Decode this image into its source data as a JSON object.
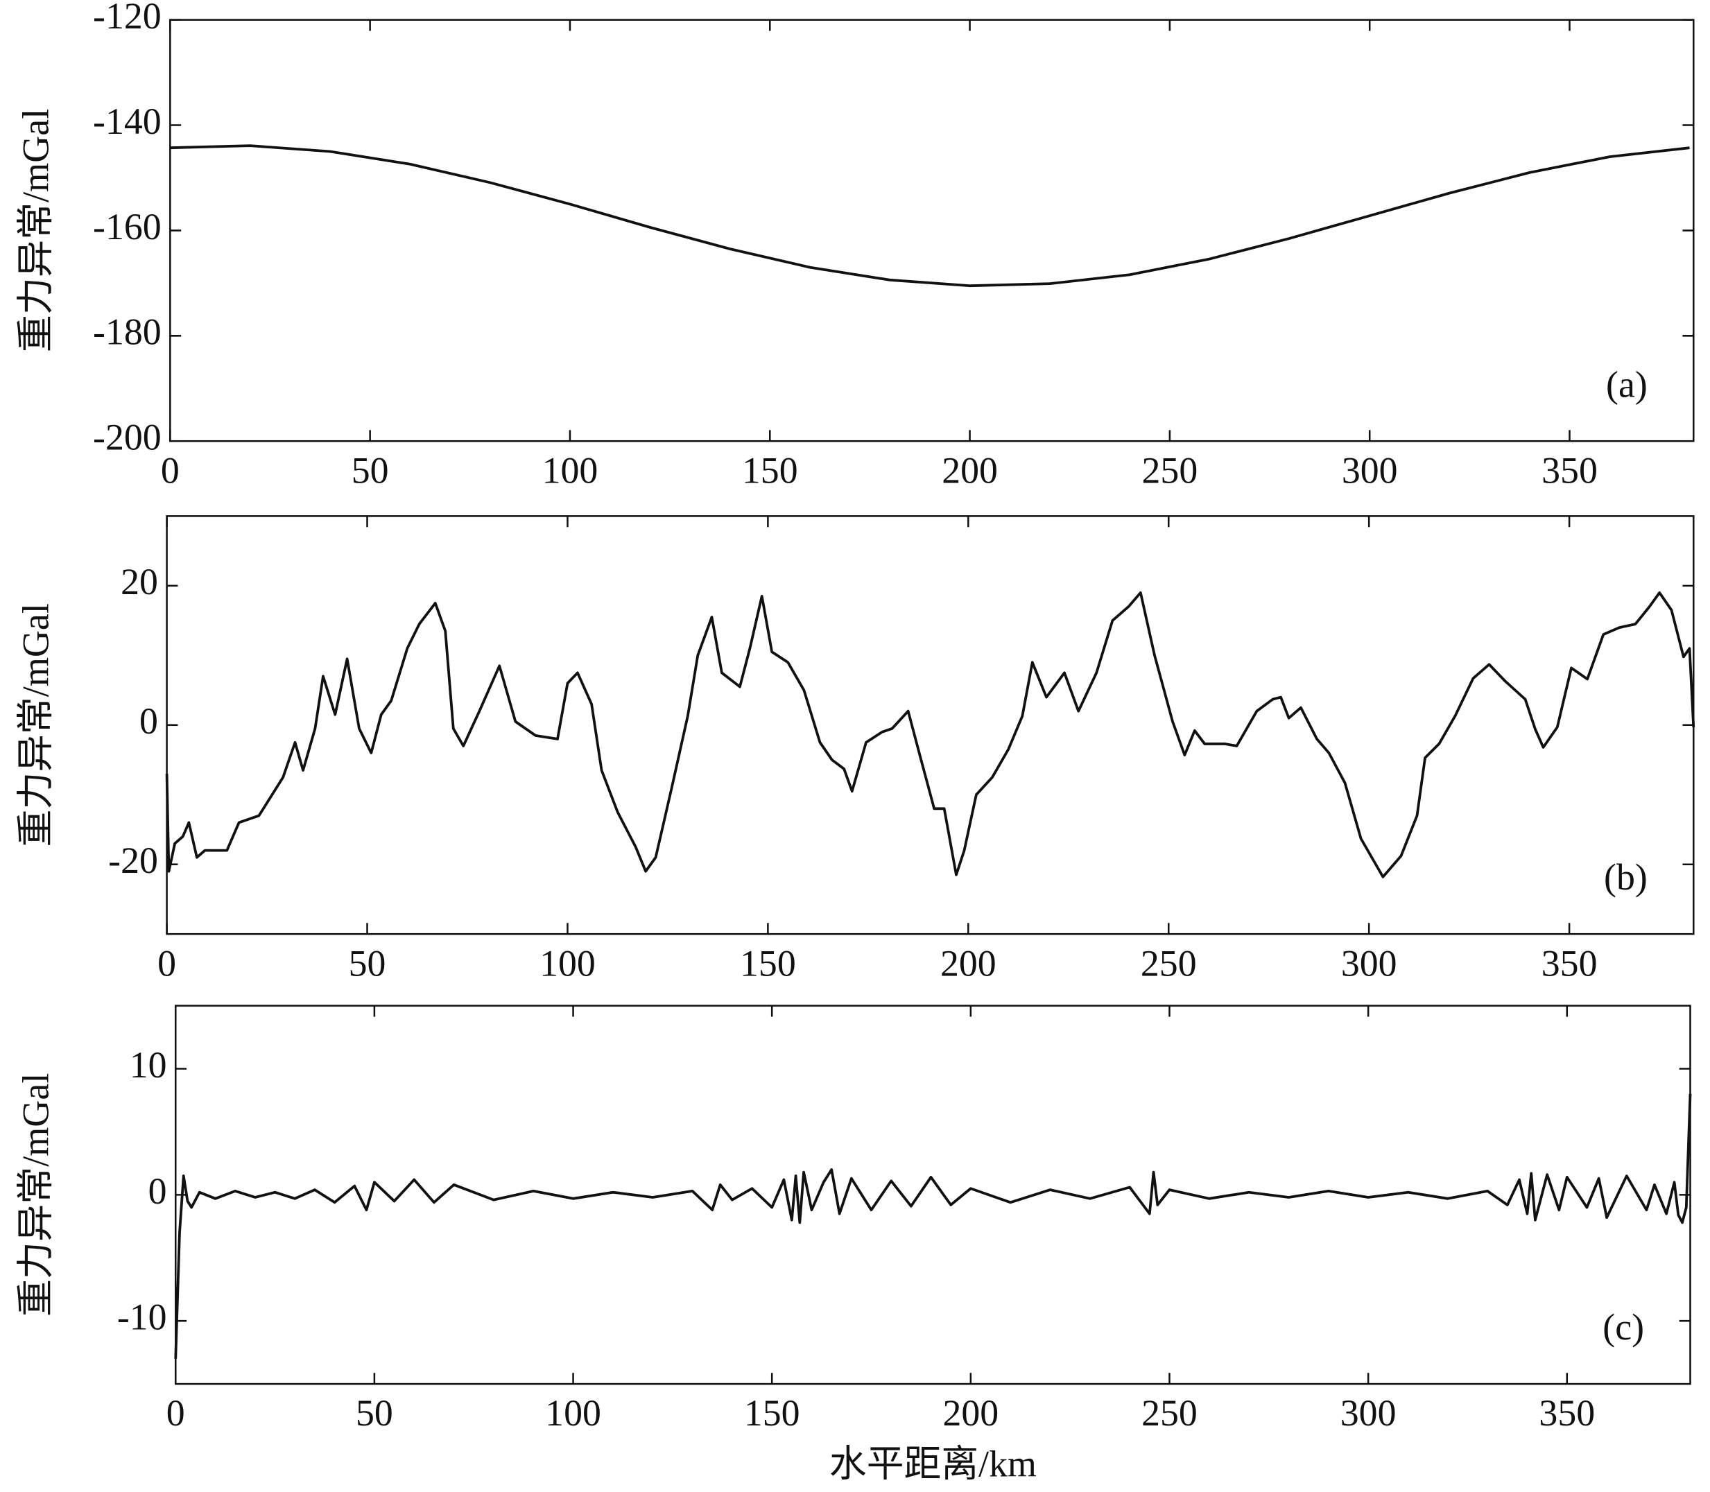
{
  "chart_data": [
    {
      "type": "line",
      "y_label": "重力异常/mGal",
      "panel_label": "(a)",
      "color": "#111111",
      "xlim": [
        0,
        381
      ],
      "ylim": [
        -200,
        -120
      ],
      "xticks": [
        0,
        50,
        100,
        150,
        200,
        250,
        300,
        350
      ],
      "yticks": [
        -200,
        -180,
        -160,
        -140,
        -120
      ],
      "x": [
        0,
        20,
        40,
        60,
        80,
        100,
        120,
        140,
        160,
        180,
        200,
        220,
        240,
        260,
        280,
        300,
        320,
        340,
        360,
        380
      ],
      "values": [
        -144.3,
        -143.9,
        -145.0,
        -147.4,
        -150.9,
        -155.0,
        -159.4,
        -163.5,
        -167.0,
        -169.4,
        -170.5,
        -170.1,
        -168.4,
        -165.4,
        -161.5,
        -157.2,
        -152.9,
        -149.0,
        -146.0,
        -144.3
      ]
    },
    {
      "type": "line",
      "y_label": "重力异常/mGal",
      "panel_label": "(b)",
      "color": "#111111",
      "xlim": [
        0,
        381
      ],
      "ylim": [
        -30,
        30
      ],
      "xticks": [
        0,
        50,
        100,
        150,
        200,
        250,
        300,
        350
      ],
      "yticks": [
        -20,
        0,
        20
      ],
      "x": [
        0,
        0.5,
        2,
        4,
        5.5,
        7.5,
        9.5,
        12,
        15,
        18,
        23,
        29,
        32,
        34,
        37,
        39,
        42,
        45,
        48,
        51,
        53.5,
        56,
        60,
        63,
        67,
        69.5,
        71.5,
        74,
        78,
        83,
        87,
        92,
        97.5,
        100,
        102.5,
        106,
        108.5,
        112.5,
        117,
        119.5,
        122,
        126,
        130,
        132.5,
        136,
        138.5,
        143,
        145.5,
        148.5,
        151,
        155,
        159,
        163,
        166,
        169,
        171,
        174.5,
        178.5,
        181,
        185,
        188,
        191.5,
        194,
        197,
        199,
        202,
        206,
        210,
        213.5,
        216,
        219.5,
        224,
        227.5,
        232,
        236,
        240,
        243,
        246.5,
        251,
        254,
        256.5,
        259,
        264,
        267,
        272,
        276,
        278,
        280,
        283,
        287,
        290,
        294,
        298,
        303.5,
        308,
        312,
        314,
        317.5,
        321.5,
        326,
        330,
        334,
        339,
        341.5,
        343.5,
        347,
        350.5,
        354.5,
        358.5,
        362.5,
        366.5,
        370,
        372.5,
        375.5,
        378.5,
        380,
        381
      ],
      "values": [
        -7,
        -21,
        -17,
        -16,
        -14,
        -19,
        -18,
        -18,
        -18,
        -14,
        -13,
        -7.5,
        -2.5,
        -6.5,
        -0.5,
        7,
        1.5,
        9.5,
        -0.5,
        -4,
        1.5,
        3.5,
        11,
        14.5,
        17.5,
        13.5,
        -0.5,
        -3,
        2,
        8.5,
        0.5,
        -1.5,
        -2,
        6,
        7.5,
        3,
        -6.5,
        -12.5,
        -17.5,
        -21,
        -19,
        -9,
        1.3,
        10,
        15.5,
        7.5,
        5.5,
        11,
        18.5,
        10.5,
        9,
        5,
        -2.5,
        -5,
        -6.3,
        -9.5,
        -2.5,
        -1,
        -0.5,
        2,
        -4.5,
        -12,
        -12,
        -21.5,
        -18,
        -10,
        -7.5,
        -3.5,
        1.3,
        9,
        4,
        7.5,
        2,
        7.5,
        15,
        17,
        19,
        10,
        0.5,
        -4.3,
        -0.8,
        -2.7,
        -2.7,
        -3,
        2,
        3.7,
        4,
        1,
        2.5,
        -2,
        -4,
        -8.3,
        -16.3,
        -21.8,
        -18.8,
        -13,
        -4.7,
        -2.7,
        1.3,
        6.7,
        8.7,
        6.3,
        3.7,
        -0.6,
        -3.2,
        -0.3,
        8.2,
        6.6,
        13,
        14,
        14.5,
        17,
        19,
        16.5,
        9.8,
        11,
        -0.3
      ]
    },
    {
      "type": "line",
      "y_label": "重力异常/mGal",
      "panel_label": "(c)",
      "x_label": "水平距离/km",
      "color": "#111111",
      "xlim": [
        0,
        381
      ],
      "ylim": [
        -15,
        15
      ],
      "xticks": [
        0,
        50,
        100,
        150,
        200,
        250,
        300,
        350
      ],
      "yticks": [
        -10,
        0,
        10
      ],
      "x": [
        0,
        1,
        2,
        3,
        4,
        6,
        10,
        15,
        20,
        25,
        30,
        35,
        40,
        45,
        48,
        50,
        55,
        60,
        65,
        70,
        80,
        90,
        100,
        110,
        120,
        130,
        135,
        137,
        140,
        145,
        150,
        153,
        155,
        156,
        157,
        158,
        160,
        163,
        165,
        167,
        170,
        175,
        180,
        185,
        190,
        195,
        200,
        210,
        220,
        230,
        240,
        245,
        246,
        247,
        250,
        260,
        270,
        280,
        290,
        300,
        310,
        320,
        330,
        335,
        338,
        340,
        341,
        342,
        345,
        348,
        350,
        355,
        358,
        360,
        365,
        370,
        372,
        375,
        377,
        378,
        379,
        380,
        381
      ],
      "values": [
        -13,
        -3,
        1.5,
        -0.5,
        -1,
        0.2,
        -0.3,
        0.3,
        -0.2,
        0.2,
        -0.3,
        0.4,
        -0.6,
        0.7,
        -1.2,
        1,
        -0.5,
        1.2,
        -0.6,
        0.8,
        -0.4,
        0.3,
        -0.3,
        0.2,
        -0.2,
        0.3,
        -1.2,
        0.8,
        -0.4,
        0.5,
        -1,
        1.2,
        -2,
        1.5,
        -2.2,
        1.8,
        -1.2,
        1,
        2,
        -1.5,
        1.3,
        -1.2,
        1.1,
        -0.9,
        1.4,
        -0.8,
        0.5,
        -0.6,
        0.4,
        -0.3,
        0.6,
        -1.5,
        1.8,
        -0.8,
        0.4,
        -0.3,
        0.2,
        -0.2,
        0.3,
        -0.2,
        0.2,
        -0.3,
        0.3,
        -0.8,
        1.2,
        -1.5,
        1.7,
        -2,
        1.6,
        -1.2,
        1.4,
        -1,
        1.3,
        -1.8,
        1.5,
        -1.2,
        0.8,
        -1.5,
        1,
        -1.6,
        -2.2,
        -1,
        8
      ]
    }
  ]
}
